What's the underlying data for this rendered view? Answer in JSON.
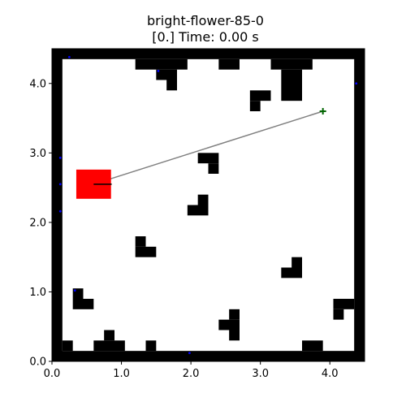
{
  "plot": {
    "title_line1": "bright-flower-85-0",
    "title_line2": "[0.] Time: 0.00 s",
    "xlim": [
      0.0,
      4.5
    ],
    "ylim": [
      0.0,
      4.5
    ],
    "x_ticks": [
      {
        "value": 0.0,
        "label": "0.0"
      },
      {
        "value": 1.0,
        "label": "1.0"
      },
      {
        "value": 2.0,
        "label": "2.0"
      },
      {
        "value": 3.0,
        "label": "3.0"
      },
      {
        "value": 4.0,
        "label": "4.0"
      }
    ],
    "y_ticks": [
      {
        "value": 0.0,
        "label": "0.0"
      },
      {
        "value": 1.0,
        "label": "1.0"
      },
      {
        "value": 2.0,
        "label": "2.0"
      },
      {
        "value": 3.0,
        "label": "3.0"
      },
      {
        "value": 4.0,
        "label": "4.0"
      }
    ]
  },
  "map": {
    "wall_color": "#000000",
    "floor_color": "#ffffff",
    "obstacles": [
      [
        0.0,
        4.35,
        4.5,
        0.15
      ],
      [
        0.0,
        0.0,
        4.5,
        0.15
      ],
      [
        0.0,
        0.0,
        0.15,
        4.5
      ],
      [
        4.35,
        0.0,
        0.15,
        4.5
      ],
      [
        1.2,
        4.2,
        0.75,
        0.15
      ],
      [
        1.5,
        4.05,
        0.3,
        0.15
      ],
      [
        1.65,
        3.9,
        0.15,
        0.15
      ],
      [
        2.4,
        4.2,
        0.3,
        0.15
      ],
      [
        3.15,
        4.2,
        0.6,
        0.15
      ],
      [
        3.3,
        3.75,
        0.3,
        0.45
      ],
      [
        2.85,
        3.75,
        0.3,
        0.15
      ],
      [
        2.85,
        3.6,
        0.15,
        0.15
      ],
      [
        2.1,
        2.85,
        0.3,
        0.15
      ],
      [
        2.25,
        2.7,
        0.15,
        0.15
      ],
      [
        1.95,
        2.1,
        0.3,
        0.15
      ],
      [
        1.95,
        2.25,
        0.15,
        0.0
      ],
      [
        2.1,
        2.25,
        0.15,
        0.15
      ],
      [
        1.2,
        1.65,
        0.15,
        0.15
      ],
      [
        1.2,
        1.5,
        0.3,
        0.15
      ],
      [
        3.3,
        1.2,
        0.3,
        0.15
      ],
      [
        3.45,
        1.35,
        0.15,
        0.15
      ],
      [
        0.3,
        0.75,
        0.3,
        0.15
      ],
      [
        0.3,
        0.9,
        0.15,
        0.15
      ],
      [
        4.05,
        0.75,
        0.3,
        0.15
      ],
      [
        4.05,
        0.6,
        0.15,
        0.15
      ],
      [
        2.4,
        0.45,
        0.3,
        0.15
      ],
      [
        2.55,
        0.3,
        0.15,
        0.15
      ],
      [
        2.55,
        0.6,
        0.15,
        0.15
      ],
      [
        0.6,
        0.15,
        0.45,
        0.15
      ],
      [
        0.75,
        0.3,
        0.15,
        0.15
      ],
      [
        1.35,
        0.15,
        0.15,
        0.15
      ],
      [
        0.15,
        0.15,
        0.15,
        0.15
      ],
      [
        3.6,
        0.15,
        0.3,
        0.15
      ]
    ]
  },
  "agent": {
    "color": "#ff0000",
    "center": [
      0.6,
      2.55
    ],
    "width": 0.5,
    "height": 0.42,
    "heading_end": [
      0.86,
      2.55
    ],
    "heading_color": "#000000"
  },
  "goal": {
    "position": [
      3.9,
      3.6
    ],
    "color": "#006400",
    "path_color": "#808080"
  },
  "sensor_hits": {
    "color": "#0000ff",
    "points": [
      [
        0.25,
        4.38
      ],
      [
        1.53,
        4.18
      ],
      [
        4.38,
        4.0
      ],
      [
        0.12,
        2.93
      ],
      [
        0.12,
        2.55
      ],
      [
        0.12,
        2.16
      ],
      [
        0.33,
        1.02
      ],
      [
        1.98,
        0.12
      ]
    ]
  }
}
